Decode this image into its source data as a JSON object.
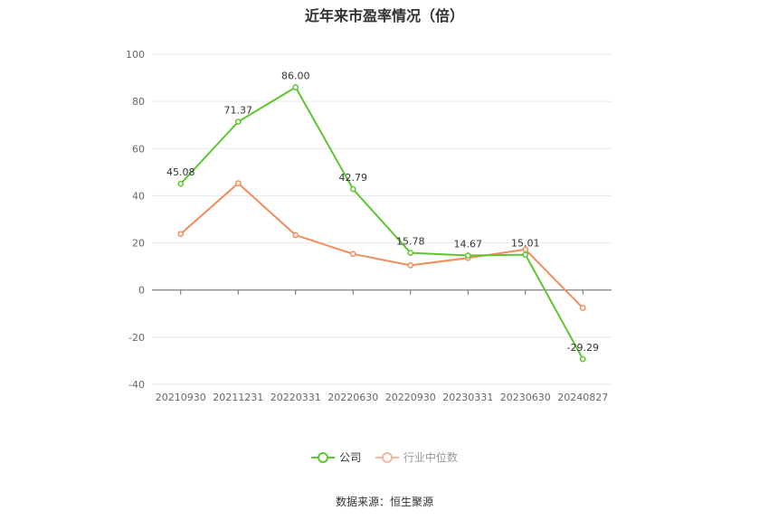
{
  "chart_data": {
    "type": "line",
    "title": "近年来市盈率情况（倍）",
    "categories": [
      "20210930",
      "20211231",
      "20220331",
      "20220630",
      "20220930",
      "20230331",
      "20230630",
      "20240827"
    ],
    "ylim": [
      -40,
      100
    ],
    "yticks": [
      -40,
      -20,
      0,
      20,
      40,
      60,
      80,
      100
    ],
    "grid": true,
    "legend_position": "bottom",
    "series": [
      {
        "name": "公司",
        "color": "#5cc630",
        "values": [
          45.08,
          71.37,
          86.0,
          42.79,
          15.78,
          14.67,
          15.01,
          -29.29
        ],
        "labels": [
          "45.08",
          "71.37",
          "86.00",
          "42.79",
          "15.78",
          "14.67",
          "15.01",
          "-29.29"
        ]
      },
      {
        "name": "行业中位数",
        "color": "#f08c5a",
        "values": [
          23.8,
          45.3,
          23.3,
          15.3,
          10.5,
          13.6,
          17.2,
          -7.6
        ]
      }
    ]
  },
  "source": "数据来源：恒生聚源"
}
